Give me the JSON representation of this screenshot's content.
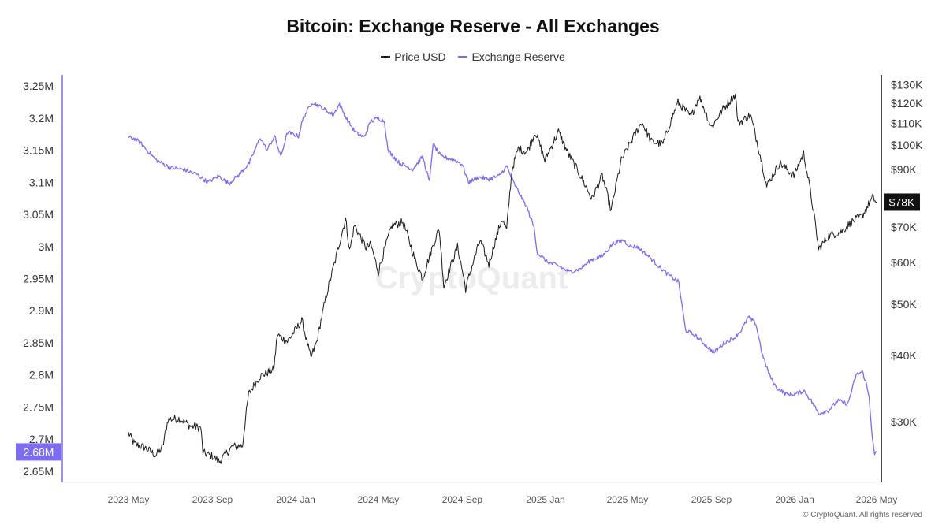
{
  "chart_data": {
    "type": "line",
    "title": "Bitcoin: Exchange Reserve - All Exchanges",
    "watermark": "CryptoQuant",
    "copyright": "© CryptoQuant. All rights reserved",
    "x_range": [
      "2023-05-01",
      "2026-05-01"
    ],
    "x_ticks": [
      {
        "date": "2023-05-01",
        "label": "2023 May"
      },
      {
        "date": "2023-09-01",
        "label": "2023 Sep"
      },
      {
        "date": "2024-01-01",
        "label": "2024 Jan"
      },
      {
        "date": "2024-05-01",
        "label": "2024 May"
      },
      {
        "date": "2024-09-01",
        "label": "2024 Sep"
      },
      {
        "date": "2025-01-01",
        "label": "2025 Jan"
      },
      {
        "date": "2025-05-01",
        "label": "2025 May"
      },
      {
        "date": "2025-09-01",
        "label": "2025 Sep"
      },
      {
        "date": "2026-01-01",
        "label": "2026 Jan"
      },
      {
        "date": "2026-05-01",
        "label": "2026 May"
      }
    ],
    "y_left": {
      "range": [
        2640000,
        3260000
      ],
      "ticks": [
        {
          "value": 3250000,
          "label": "3.25M"
        },
        {
          "value": 3200000,
          "label": "3.2M"
        },
        {
          "value": 3150000,
          "label": "3.15M"
        },
        {
          "value": 3100000,
          "label": "3.1M"
        },
        {
          "value": 3050000,
          "label": "3.05M"
        },
        {
          "value": 3000000,
          "label": "3M"
        },
        {
          "value": 2950000,
          "label": "2.95M"
        },
        {
          "value": 2900000,
          "label": "2.9M"
        },
        {
          "value": 2850000,
          "label": "2.85M"
        },
        {
          "value": 2800000,
          "label": "2.8M"
        },
        {
          "value": 2750000,
          "label": "2.75M"
        },
        {
          "value": 2700000,
          "label": "2.7M"
        },
        {
          "value": 2650000,
          "label": "2.65M"
        }
      ],
      "last_value_label": "2.68M",
      "last_value": 2680000
    },
    "y_right": {
      "scale": "log",
      "range": [
        23500,
        133000
      ],
      "ticks": [
        {
          "value": 130000,
          "label": "$130K"
        },
        {
          "value": 120000,
          "label": "$120K"
        },
        {
          "value": 110000,
          "label": "$110K"
        },
        {
          "value": 100000,
          "label": "$100K"
        },
        {
          "value": 90000,
          "label": "$90K"
        },
        {
          "value": 70000,
          "label": "$70K"
        },
        {
          "value": 60000,
          "label": "$60K"
        },
        {
          "value": 50000,
          "label": "$50K"
        },
        {
          "value": 40000,
          "label": "$40K"
        },
        {
          "value": 30000,
          "label": "$30K"
        }
      ],
      "last_value_label": "$78K",
      "last_value": 78000
    },
    "legend_position": "top-center",
    "grid": false,
    "series": [
      {
        "name": "Price USD",
        "axis": "right",
        "color": "#1a1a1a",
        "points": [
          [
            "2023-05-01",
            28500
          ],
          [
            "2023-05-10",
            27200
          ],
          [
            "2023-05-25",
            26800
          ],
          [
            "2023-06-10",
            25900
          ],
          [
            "2023-06-20",
            26800
          ],
          [
            "2023-06-28",
            30300
          ],
          [
            "2023-07-15",
            30400
          ],
          [
            "2023-07-31",
            29400
          ],
          [
            "2023-08-15",
            29200
          ],
          [
            "2023-08-18",
            26200
          ],
          [
            "2023-09-01",
            25800
          ],
          [
            "2023-09-11",
            25200
          ],
          [
            "2023-09-30",
            26900
          ],
          [
            "2023-10-15",
            27000
          ],
          [
            "2023-10-24",
            33800
          ],
          [
            "2023-11-09",
            36500
          ],
          [
            "2023-11-30",
            37700
          ],
          [
            "2023-12-05",
            43800
          ],
          [
            "2023-12-20",
            42500
          ],
          [
            "2024-01-10",
            46500
          ],
          [
            "2024-01-23",
            39500
          ],
          [
            "2024-02-01",
            42500
          ],
          [
            "2024-02-15",
            52000
          ],
          [
            "2024-02-28",
            60500
          ],
          [
            "2024-03-14",
            72500
          ],
          [
            "2024-03-20",
            63000
          ],
          [
            "2024-03-27",
            70500
          ],
          [
            "2024-04-13",
            64000
          ],
          [
            "2024-04-20",
            64800
          ],
          [
            "2024-05-01",
            57500
          ],
          [
            "2024-05-21",
            70500
          ],
          [
            "2024-06-06",
            71500
          ],
          [
            "2024-06-24",
            60500
          ],
          [
            "2024-07-05",
            56000
          ],
          [
            "2024-07-29",
            69500
          ],
          [
            "2024-08-05",
            54000
          ],
          [
            "2024-08-25",
            64200
          ],
          [
            "2024-09-06",
            53500
          ],
          [
            "2024-09-27",
            66000
          ],
          [
            "2024-10-10",
            59500
          ],
          [
            "2024-10-29",
            72500
          ],
          [
            "2024-11-05",
            69000
          ],
          [
            "2024-11-13",
            90000
          ],
          [
            "2024-11-22",
            98500
          ],
          [
            "2024-12-05",
            97000
          ],
          [
            "2024-12-17",
            106000
          ],
          [
            "2024-12-31",
            93500
          ],
          [
            "2025-01-20",
            106000
          ],
          [
            "2025-02-02",
            97000
          ],
          [
            "2025-02-28",
            84000
          ],
          [
            "2025-03-10",
            79000
          ],
          [
            "2025-03-25",
            87500
          ],
          [
            "2025-04-07",
            75000
          ],
          [
            "2025-04-22",
            93500
          ],
          [
            "2025-05-22",
            110500
          ],
          [
            "2025-06-05",
            101500
          ],
          [
            "2025-06-22",
            100500
          ],
          [
            "2025-07-14",
            120500
          ],
          [
            "2025-08-02",
            113000
          ],
          [
            "2025-08-14",
            123500
          ],
          [
            "2025-09-01",
            108000
          ],
          [
            "2025-09-18",
            117000
          ],
          [
            "2025-10-06",
            124500
          ],
          [
            "2025-10-10",
            110000
          ],
          [
            "2025-10-28",
            114000
          ],
          [
            "2025-11-21",
            83500
          ],
          [
            "2025-12-10",
            92500
          ],
          [
            "2025-12-31",
            87500
          ],
          [
            "2026-01-14",
            96500
          ],
          [
            "2026-02-05",
            63500
          ],
          [
            "2026-02-20",
            67500
          ],
          [
            "2026-03-10",
            68500
          ],
          [
            "2026-03-25",
            71500
          ],
          [
            "2026-04-10",
            73500
          ],
          [
            "2026-04-25",
            79500
          ],
          [
            "2026-05-01",
            78000
          ]
        ]
      },
      {
        "name": "Exchange Reserve",
        "axis": "left",
        "color": "#7b6cf0",
        "points": [
          [
            "2023-05-01",
            3170000
          ],
          [
            "2023-05-10",
            3168000
          ],
          [
            "2023-05-20",
            3160000
          ],
          [
            "2023-06-10",
            3135000
          ],
          [
            "2023-07-01",
            3123000
          ],
          [
            "2023-07-20",
            3120000
          ],
          [
            "2023-08-10",
            3112000
          ],
          [
            "2023-08-25",
            3100000
          ],
          [
            "2023-09-10",
            3110000
          ],
          [
            "2023-09-25",
            3098000
          ],
          [
            "2023-10-10",
            3112000
          ],
          [
            "2023-10-25",
            3130000
          ],
          [
            "2023-11-10",
            3170000
          ],
          [
            "2023-11-20",
            3150000
          ],
          [
            "2023-12-01",
            3172000
          ],
          [
            "2023-12-10",
            3140000
          ],
          [
            "2023-12-20",
            3178000
          ],
          [
            "2024-01-05",
            3172000
          ],
          [
            "2024-01-12",
            3200000
          ],
          [
            "2024-01-25",
            3225000
          ],
          [
            "2024-02-10",
            3215000
          ],
          [
            "2024-02-25",
            3205000
          ],
          [
            "2024-03-05",
            3222000
          ],
          [
            "2024-03-15",
            3200000
          ],
          [
            "2024-03-28",
            3178000
          ],
          [
            "2024-04-10",
            3170000
          ],
          [
            "2024-04-20",
            3195000
          ],
          [
            "2024-05-01",
            3200000
          ],
          [
            "2024-05-10",
            3195000
          ],
          [
            "2024-05-15",
            3150000
          ],
          [
            "2024-06-01",
            3130000
          ],
          [
            "2024-06-20",
            3120000
          ],
          [
            "2024-07-05",
            3140000
          ],
          [
            "2024-07-15",
            3100000
          ],
          [
            "2024-07-20",
            3160000
          ],
          [
            "2024-08-01",
            3140000
          ],
          [
            "2024-08-20",
            3135000
          ],
          [
            "2024-09-01",
            3128000
          ],
          [
            "2024-09-10",
            3100000
          ],
          [
            "2024-09-25",
            3108000
          ],
          [
            "2024-10-10",
            3105000
          ],
          [
            "2024-10-25",
            3110000
          ],
          [
            "2024-11-05",
            3125000
          ],
          [
            "2024-11-15",
            3100000
          ],
          [
            "2024-11-25",
            3080000
          ],
          [
            "2024-12-05",
            3060000
          ],
          [
            "2024-12-15",
            3030000
          ],
          [
            "2024-12-20",
            2990000
          ],
          [
            "2025-01-05",
            2975000
          ],
          [
            "2025-01-20",
            2970000
          ],
          [
            "2025-02-05",
            2960000
          ],
          [
            "2025-02-20",
            2965000
          ],
          [
            "2025-03-10",
            2980000
          ],
          [
            "2025-03-25",
            2985000
          ],
          [
            "2025-04-10",
            3005000
          ],
          [
            "2025-04-25",
            3010000
          ],
          [
            "2025-05-05",
            3000000
          ],
          [
            "2025-05-15",
            3000000
          ],
          [
            "2025-06-01",
            2985000
          ],
          [
            "2025-06-20",
            2965000
          ],
          [
            "2025-07-01",
            2955000
          ],
          [
            "2025-07-15",
            2945000
          ],
          [
            "2025-07-25",
            2870000
          ],
          [
            "2025-08-10",
            2860000
          ],
          [
            "2025-08-25",
            2845000
          ],
          [
            "2025-09-05",
            2835000
          ],
          [
            "2025-09-20",
            2850000
          ],
          [
            "2025-10-05",
            2858000
          ],
          [
            "2025-10-15",
            2870000
          ],
          [
            "2025-10-25",
            2890000
          ],
          [
            "2025-11-05",
            2880000
          ],
          [
            "2025-11-15",
            2830000
          ],
          [
            "2025-11-25",
            2800000
          ],
          [
            "2025-12-05",
            2780000
          ],
          [
            "2025-12-20",
            2770000
          ],
          [
            "2026-01-01",
            2770000
          ],
          [
            "2026-01-15",
            2775000
          ],
          [
            "2026-01-25",
            2760000
          ],
          [
            "2026-02-05",
            2740000
          ],
          [
            "2026-02-20",
            2745000
          ],
          [
            "2026-03-05",
            2760000
          ],
          [
            "2026-03-20",
            2755000
          ],
          [
            "2026-04-01",
            2800000
          ],
          [
            "2026-04-10",
            2805000
          ],
          [
            "2026-04-15",
            2790000
          ],
          [
            "2026-04-20",
            2765000
          ],
          [
            "2026-04-25",
            2700000
          ],
          [
            "2026-04-28",
            2675000
          ],
          [
            "2026-05-01",
            2680000
          ]
        ]
      }
    ]
  }
}
